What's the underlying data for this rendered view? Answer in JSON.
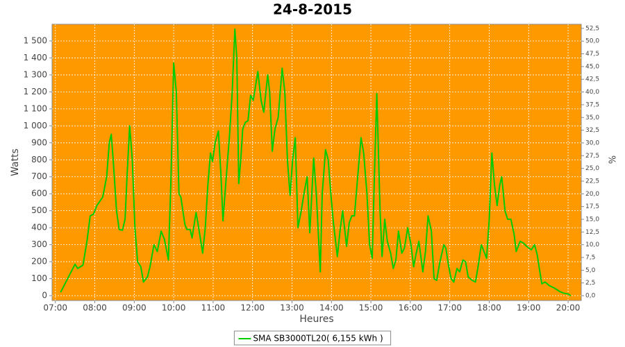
{
  "chart_data": {
    "type": "line",
    "title": "24-8-2015",
    "xlabel": "Heures",
    "ylabel": "Watts",
    "y2label": "%",
    "background": "#ff9900",
    "grid": true,
    "legend": "bottom",
    "x": [
      "07:08",
      "07:30",
      "07:34",
      "07:42",
      "07:48",
      "07:53",
      "07:58",
      "08:03",
      "08:12",
      "08:18",
      "08:22",
      "08:25",
      "08:28",
      "08:33",
      "08:37",
      "08:42",
      "08:46",
      "08:49",
      "08:53",
      "08:57",
      "09:01",
      "09:05",
      "09:10",
      "09:14",
      "09:20",
      "09:24",
      "09:30",
      "09:35",
      "09:41",
      "09:46",
      "09:52",
      "09:56",
      "10:00",
      "10:04",
      "10:08",
      "10:11",
      "10:17",
      "10:20",
      "10:25",
      "10:28",
      "10:34",
      "10:38",
      "10:44",
      "10:48",
      "10:52",
      "10:56",
      "10:59",
      "11:03",
      "11:08",
      "11:12",
      "11:15",
      "11:19",
      "11:25",
      "11:29",
      "11:33",
      "11:36",
      "11:39",
      "11:42",
      "11:45",
      "11:49",
      "11:53",
      "11:57",
      "12:01",
      "12:08",
      "12:13",
      "12:17",
      "12:23",
      "12:26",
      "12:30",
      "12:34",
      "12:39",
      "12:45",
      "12:49",
      "12:53",
      "12:57",
      "13:01",
      "13:05",
      "13:09",
      "13:14",
      "13:19",
      "13:23",
      "13:27",
      "13:33",
      "13:37",
      "13:43",
      "13:46",
      "13:51",
      "13:55",
      "13:59",
      "14:03",
      "14:09",
      "14:13",
      "14:17",
      "14:23",
      "14:27",
      "14:31",
      "14:35",
      "14:41",
      "14:45",
      "14:49",
      "14:54",
      "14:58",
      "15:02",
      "15:06",
      "15:09",
      "15:14",
      "15:17",
      "15:21",
      "15:25",
      "15:30",
      "15:34",
      "15:38",
      "15:42",
      "15:47",
      "15:51",
      "15:56",
      "16:01",
      "16:05",
      "16:09",
      "16:13",
      "16:19",
      "16:23",
      "16:27",
      "16:32",
      "16:36",
      "16:40",
      "16:45",
      "16:51",
      "16:54",
      "16:58",
      "17:02",
      "17:06",
      "17:11",
      "17:15",
      "17:20",
      "17:24",
      "17:28",
      "17:34",
      "17:39",
      "17:43",
      "17:48",
      "17:53",
      "17:56",
      "18:00",
      "18:04",
      "18:08",
      "18:12",
      "18:16",
      "18:19",
      "18:24",
      "18:28",
      "18:33",
      "18:38",
      "18:41",
      "18:47",
      "18:52",
      "18:57",
      "19:04",
      "19:09",
      "19:13",
      "19:17",
      "19:20",
      "19:25",
      "19:31",
      "19:39",
      "19:47",
      "19:53",
      "20:00",
      "20:04"
    ],
    "series": [
      {
        "name": "SMA SB3000TL20( 6,155 kWh )",
        "color": "#00cc00",
        "values": [
          20,
          185,
          160,
          180,
          320,
          470,
          480,
          530,
          580,
          700,
          900,
          950,
          800,
          500,
          390,
          385,
          450,
          700,
          1000,
          800,
          400,
          200,
          170,
          80,
          110,
          170,
          300,
          260,
          380,
          330,
          210,
          700,
          1370,
          1200,
          600,
          580,
          420,
          390,
          390,
          340,
          490,
          400,
          250,
          400,
          650,
          840,
          790,
          900,
          970,
          700,
          440,
          650,
          950,
          1200,
          1570,
          1400,
          660,
          800,
          980,
          1020,
          1030,
          1180,
          1150,
          1320,
          1150,
          1080,
          1300,
          1200,
          850,
          980,
          1050,
          1340,
          1200,
          800,
          590,
          800,
          930,
          400,
          500,
          620,
          700,
          370,
          810,
          600,
          140,
          600,
          860,
          800,
          600,
          430,
          230,
          380,
          500,
          290,
          430,
          470,
          470,
          750,
          930,
          840,
          600,
          300,
          220,
          800,
          1190,
          500,
          230,
          450,
          320,
          250,
          160,
          210,
          380,
          250,
          280,
          400,
          300,
          170,
          250,
          320,
          140,
          260,
          470,
          380,
          100,
          90,
          200,
          300,
          280,
          180,
          100,
          80,
          160,
          140,
          210,
          200,
          110,
          90,
          80,
          170,
          300,
          250,
          220,
          450,
          840,
          650,
          530,
          650,
          700,
          500,
          450,
          450,
          360,
          260,
          320,
          310,
          290,
          270,
          300,
          240,
          140,
          70,
          80,
          60,
          45,
          25,
          15,
          10,
          0
        ]
      }
    ],
    "xlim": [
      "06:55",
      "20:20"
    ],
    "xticks": [
      "07:00",
      "08:00",
      "09:00",
      "10:00",
      "11:00",
      "12:00",
      "13:00",
      "14:00",
      "15:00",
      "16:00",
      "17:00",
      "18:00",
      "19:00",
      "20:00"
    ],
    "ylim": [
      -28.6,
      1598
    ],
    "yticks": [
      0,
      100,
      200,
      300,
      400,
      500,
      600,
      700,
      800,
      900,
      {
        "value": 1000,
        "label": "1 000"
      },
      {
        "value": 1100,
        "label": "1 100"
      },
      {
        "value": 1200,
        "label": "1 200"
      },
      {
        "value": 1300,
        "label": "1 300"
      },
      {
        "value": 1400,
        "label": "1 400"
      },
      {
        "value": 1500,
        "label": "1 500"
      }
    ],
    "y2lim": [
      -0.95,
      53.3
    ],
    "y2ticks": [
      {
        "value": 0,
        "label": "0,0"
      },
      {
        "value": 2.5,
        "label": "2,5"
      },
      {
        "value": 5,
        "label": "5,0"
      },
      {
        "value": 7.5,
        "label": "7,5"
      },
      {
        "value": 10,
        "label": "10,0"
      },
      {
        "value": 12.5,
        "label": "12,5"
      },
      {
        "value": 15,
        "label": "15,0"
      },
      {
        "value": 17.5,
        "label": "17,5"
      },
      {
        "value": 20,
        "label": "20,0"
      },
      {
        "value": 22.5,
        "label": "22,5"
      },
      {
        "value": 25,
        "label": "25,0"
      },
      {
        "value": 27.5,
        "label": "27,5"
      },
      {
        "value": 30,
        "label": "30,0"
      },
      {
        "value": 32.5,
        "label": "32,5"
      },
      {
        "value": 35,
        "label": "35,0"
      },
      {
        "value": 37.5,
        "label": "37,5"
      },
      {
        "value": 40,
        "label": "40,0"
      },
      {
        "value": 42.5,
        "label": "42,5"
      },
      {
        "value": 45,
        "label": "45,0"
      },
      {
        "value": 47.5,
        "label": "47,5"
      },
      {
        "value": 50,
        "label": "50,0"
      },
      {
        "value": 52.5,
        "label": "52,5"
      }
    ]
  }
}
